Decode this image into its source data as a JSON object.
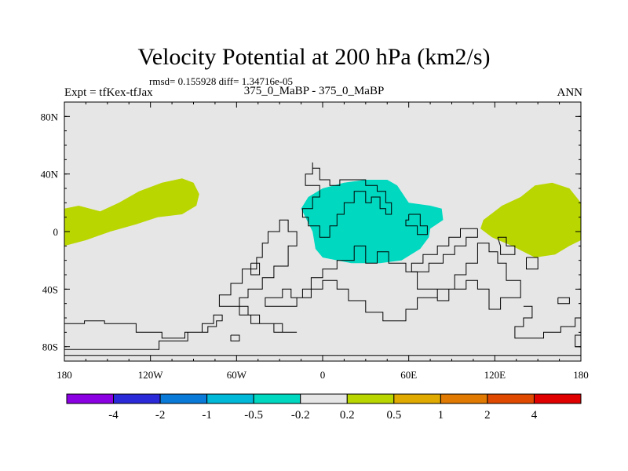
{
  "header": {
    "title": "Velocity Potential at 200 hPa (km2/s)",
    "stats": "rmsd= 0.155928 diff= 1.34716e-05",
    "left_label": "Expt = tfKex-tfJax",
    "center_label": "375_0_MaBP - 375_0_MaBP",
    "right_label": "ANN"
  },
  "map": {
    "projection": "cylindrical equidistant",
    "background_color": "#e6e6e6",
    "lon_ticks": [
      "180",
      "120W",
      "60W",
      "0",
      "60E",
      "120E",
      "180"
    ],
    "lat_ticks": [
      "80N",
      "40N",
      "0",
      "40S",
      "80S"
    ],
    "coastline_color": "#000000"
  },
  "chart_data": {
    "type": "heatmap",
    "x_range": [
      -180,
      180
    ],
    "y_range": [
      -90,
      90
    ],
    "regions": [
      {
        "name": "",
        "level": "0.2 to 0.5",
        "color": "#b9d600",
        "lonlat": [
          [
            -180,
            16
          ],
          [
            -170,
            18
          ],
          [
            -155,
            14
          ],
          [
            -142,
            20
          ],
          [
            -128,
            28
          ],
          [
            -112,
            34
          ],
          [
            -98,
            37
          ],
          [
            -90,
            34
          ],
          [
            -86,
            26
          ],
          [
            -88,
            18
          ],
          [
            -98,
            12
          ],
          [
            -115,
            10
          ],
          [
            -130,
            5
          ],
          [
            -148,
            0
          ],
          [
            -165,
            -6
          ],
          [
            -180,
            -10
          ]
        ]
      },
      {
        "name": "",
        "level": "0.2 to 0.5",
        "color": "#b9d600",
        "lonlat": [
          [
            180,
            20
          ],
          [
            172,
            30
          ],
          [
            160,
            34
          ],
          [
            148,
            32
          ],
          [
            138,
            24
          ],
          [
            125,
            18
          ],
          [
            112,
            8
          ],
          [
            110,
            2
          ],
          [
            118,
            -4
          ],
          [
            132,
            -10
          ],
          [
            148,
            -18
          ],
          [
            162,
            -16
          ],
          [
            172,
            -10
          ],
          [
            180,
            -6
          ]
        ]
      },
      {
        "name": "",
        "level": "-0.5 to -0.2",
        "color": "#00d8c0",
        "lonlat": [
          [
            -15,
            16
          ],
          [
            -10,
            24
          ],
          [
            0,
            30
          ],
          [
            15,
            34
          ],
          [
            30,
            36
          ],
          [
            45,
            36
          ],
          [
            52,
            32
          ],
          [
            60,
            20
          ],
          [
            75,
            18
          ],
          [
            83,
            16
          ],
          [
            84,
            8
          ],
          [
            75,
            2
          ],
          [
            74,
            -4
          ],
          [
            68,
            -12
          ],
          [
            55,
            -20
          ],
          [
            40,
            -22
          ],
          [
            20,
            -22
          ],
          [
            0,
            -18
          ],
          [
            -5,
            -12
          ],
          [
            -7,
            0
          ],
          [
            -12,
            10
          ]
        ]
      }
    ],
    "colorbar": {
      "levels": [
        "-4",
        "-2",
        "-1",
        "-0.5",
        "-0.2",
        "0.2",
        "0.5",
        "1",
        "2",
        "4"
      ],
      "colors": [
        "#8a00e2",
        "#2a2ad8",
        "#0a7ad8",
        "#00b8d8",
        "#00d8c0",
        "#e6e6e6",
        "#b9d600",
        "#e0aa00",
        "#e07a00",
        "#e04a00",
        "#e00000"
      ]
    }
  },
  "coastlines": [
    [
      [
        -7,
        48
      ],
      [
        -7,
        44
      ],
      [
        -2,
        44
      ],
      [
        -2,
        36
      ],
      [
        5,
        36
      ],
      [
        5,
        32
      ],
      [
        12,
        32
      ],
      [
        12,
        36
      ],
      [
        30,
        36
      ],
      [
        30,
        32
      ],
      [
        38,
        32
      ],
      [
        38,
        28
      ],
      [
        44,
        28
      ],
      [
        44,
        20
      ],
      [
        48,
        20
      ],
      [
        48,
        12
      ],
      [
        44,
        12
      ],
      [
        44,
        16
      ],
      [
        40,
        16
      ],
      [
        40,
        24
      ],
      [
        34,
        24
      ],
      [
        34,
        20
      ],
      [
        30,
        20
      ],
      [
        30,
        28
      ],
      [
        22,
        28
      ],
      [
        22,
        20
      ],
      [
        15,
        20
      ],
      [
        15,
        12
      ],
      [
        10,
        12
      ],
      [
        10,
        4
      ],
      [
        5,
        4
      ],
      [
        5,
        -4
      ],
      [
        -2,
        -4
      ],
      [
        -2,
        4
      ],
      [
        -10,
        4
      ],
      [
        -10,
        10
      ],
      [
        -14,
        10
      ],
      [
        -14,
        16
      ],
      [
        -7,
        16
      ],
      [
        -7,
        24
      ],
      [
        -2,
        24
      ],
      [
        -2,
        32
      ],
      [
        -12,
        32
      ],
      [
        -12,
        40
      ],
      [
        -7,
        40
      ],
      [
        -7,
        48
      ]
    ],
    [
      [
        60,
        12
      ],
      [
        68,
        12
      ],
      [
        68,
        4
      ],
      [
        73,
        4
      ],
      [
        73,
        -2
      ],
      [
        66,
        -2
      ],
      [
        66,
        4
      ],
      [
        58,
        4
      ],
      [
        58,
        8
      ],
      [
        60,
        8
      ],
      [
        60,
        12
      ]
    ],
    [
      [
        -18,
        -70
      ],
      [
        -28,
        -70
      ],
      [
        -28,
        -64
      ],
      [
        -50,
        -64
      ],
      [
        -50,
        -58
      ],
      [
        -58,
        -58
      ],
      [
        -58,
        -46
      ],
      [
        -52,
        -46
      ],
      [
        -52,
        -40
      ],
      [
        -42,
        -40
      ],
      [
        -42,
        -32
      ],
      [
        -34,
        -32
      ],
      [
        -34,
        -24
      ],
      [
        -24,
        -24
      ],
      [
        -24,
        -10
      ],
      [
        -18,
        -10
      ],
      [
        -18,
        0
      ],
      [
        -24,
        0
      ],
      [
        -24,
        8
      ],
      [
        -30,
        8
      ],
      [
        -30,
        0
      ],
      [
        -38,
        0
      ],
      [
        -38,
        -8
      ],
      [
        -42,
        -8
      ],
      [
        -42,
        -18
      ],
      [
        -46,
        -18
      ],
      [
        -46,
        -26
      ],
      [
        -56,
        -26
      ],
      [
        -56,
        -36
      ],
      [
        -64,
        -36
      ],
      [
        -64,
        -44
      ],
      [
        -72,
        -44
      ],
      [
        -72,
        -52
      ],
      [
        -52,
        -52
      ],
      [
        -52,
        -58
      ],
      [
        -44,
        -58
      ],
      [
        -44,
        -64
      ],
      [
        -34,
        -64
      ],
      [
        -34,
        -70
      ],
      [
        -18,
        -70
      ]
    ],
    [
      [
        -50,
        -22
      ],
      [
        -50,
        -30
      ],
      [
        -44,
        -30
      ],
      [
        -44,
        -22
      ],
      [
        -50,
        -22
      ]
    ],
    [
      [
        22,
        -10
      ],
      [
        22,
        -20
      ],
      [
        10,
        -20
      ],
      [
        10,
        -26
      ],
      [
        0,
        -26
      ],
      [
        0,
        -32
      ],
      [
        -8,
        -32
      ],
      [
        -8,
        -40
      ],
      [
        -14,
        -40
      ],
      [
        -14,
        -46
      ],
      [
        -22,
        -46
      ],
      [
        -22,
        -40
      ],
      [
        -28,
        -40
      ],
      [
        -28,
        -46
      ],
      [
        -40,
        -46
      ],
      [
        -40,
        -52
      ],
      [
        -18,
        -52
      ],
      [
        -18,
        -46
      ],
      [
        -8,
        -46
      ],
      [
        -8,
        -40
      ],
      [
        0,
        -40
      ],
      [
        0,
        -34
      ],
      [
        10,
        -34
      ],
      [
        10,
        -40
      ],
      [
        18,
        -40
      ],
      [
        18,
        -48
      ],
      [
        30,
        -48
      ],
      [
        30,
        -56
      ],
      [
        42,
        -56
      ],
      [
        42,
        -62
      ],
      [
        58,
        -62
      ],
      [
        58,
        -54
      ],
      [
        66,
        -54
      ],
      [
        66,
        -46
      ],
      [
        80,
        -46
      ],
      [
        80,
        -40
      ],
      [
        92,
        -40
      ],
      [
        92,
        -30
      ],
      [
        100,
        -30
      ],
      [
        100,
        -22
      ],
      [
        108,
        -22
      ],
      [
        108,
        -8
      ],
      [
        116,
        -8
      ],
      [
        116,
        -14
      ],
      [
        122,
        -14
      ],
      [
        122,
        -22
      ],
      [
        128,
        -22
      ],
      [
        128,
        -34
      ],
      [
        138,
        -34
      ],
      [
        138,
        -46
      ],
      [
        124,
        -46
      ],
      [
        124,
        -54
      ],
      [
        116,
        -54
      ],
      [
        116,
        -40
      ],
      [
        108,
        -40
      ],
      [
        108,
        -34
      ],
      [
        100,
        -34
      ],
      [
        100,
        -40
      ],
      [
        88,
        -40
      ],
      [
        88,
        -48
      ],
      [
        80,
        -48
      ],
      [
        80,
        -40
      ],
      [
        66,
        -40
      ],
      [
        66,
        -28
      ],
      [
        58,
        -28
      ],
      [
        58,
        -22
      ],
      [
        46,
        -22
      ],
      [
        46,
        -14
      ],
      [
        38,
        -14
      ],
      [
        38,
        -22
      ],
      [
        30,
        -22
      ],
      [
        30,
        -10
      ],
      [
        22,
        -10
      ]
    ],
    [
      [
        108,
        2
      ],
      [
        108,
        -4
      ],
      [
        100,
        -4
      ],
      [
        100,
        -10
      ],
      [
        92,
        -10
      ],
      [
        92,
        -16
      ],
      [
        84,
        -16
      ],
      [
        84,
        -22
      ],
      [
        74,
        -22
      ],
      [
        74,
        -28
      ],
      [
        62,
        -28
      ],
      [
        62,
        -22
      ],
      [
        70,
        -22
      ],
      [
        70,
        -16
      ],
      [
        80,
        -16
      ],
      [
        80,
        -10
      ],
      [
        88,
        -10
      ],
      [
        88,
        -4
      ],
      [
        96,
        -4
      ],
      [
        96,
        2
      ],
      [
        108,
        2
      ]
    ],
    [
      [
        122,
        -4
      ],
      [
        128,
        -4
      ],
      [
        128,
        -10
      ],
      [
        134,
        -10
      ],
      [
        134,
        -16
      ],
      [
        124,
        -16
      ],
      [
        124,
        -10
      ],
      [
        122,
        -4
      ]
    ],
    [
      [
        142,
        -18
      ],
      [
        150,
        -18
      ],
      [
        150,
        -26
      ],
      [
        142,
        -26
      ],
      [
        142,
        -18
      ]
    ],
    [
      [
        -180,
        -64
      ],
      [
        -166,
        -64
      ],
      [
        -166,
        -62
      ],
      [
        -152,
        -62
      ],
      [
        -152,
        -64
      ],
      [
        -130,
        -64
      ],
      [
        -130,
        -70
      ],
      [
        -112,
        -70
      ],
      [
        -112,
        -74
      ],
      [
        -96,
        -74
      ],
      [
        -96,
        -70
      ],
      [
        -80,
        -70
      ],
      [
        -80,
        -66
      ],
      [
        -74,
        -66
      ],
      [
        -74,
        -62
      ],
      [
        -70,
        -62
      ],
      [
        -70,
        -58
      ],
      [
        -76,
        -58
      ],
      [
        -76,
        -64
      ],
      [
        -84,
        -64
      ],
      [
        -84,
        -70
      ],
      [
        -94,
        -70
      ],
      [
        -94,
        -76
      ],
      [
        -114,
        -76
      ],
      [
        -114,
        -82
      ],
      [
        -180,
        -82
      ]
    ],
    [
      [
        -64,
        -72
      ],
      [
        -58,
        -72
      ],
      [
        -58,
        -76
      ],
      [
        -64,
        -76
      ],
      [
        -64,
        -72
      ]
    ],
    [
      [
        -180,
        -86
      ],
      [
        180,
        -86
      ]
    ],
    [
      [
        140,
        -52
      ],
      [
        146,
        -52
      ],
      [
        146,
        -60
      ],
      [
        140,
        -60
      ],
      [
        140,
        -66
      ],
      [
        134,
        -66
      ],
      [
        134,
        -74
      ],
      [
        154,
        -74
      ],
      [
        154,
        -70
      ],
      [
        166,
        -70
      ],
      [
        166,
        -66
      ],
      [
        176,
        -66
      ],
      [
        176,
        -60
      ],
      [
        180,
        -60
      ]
    ],
    [
      [
        164,
        -46
      ],
      [
        172,
        -46
      ],
      [
        172,
        -50
      ],
      [
        164,
        -50
      ],
      [
        164,
        -46
      ]
    ],
    [
      [
        180,
        -72
      ],
      [
        176,
        -72
      ],
      [
        176,
        -80
      ],
      [
        180,
        -80
      ]
    ]
  ]
}
